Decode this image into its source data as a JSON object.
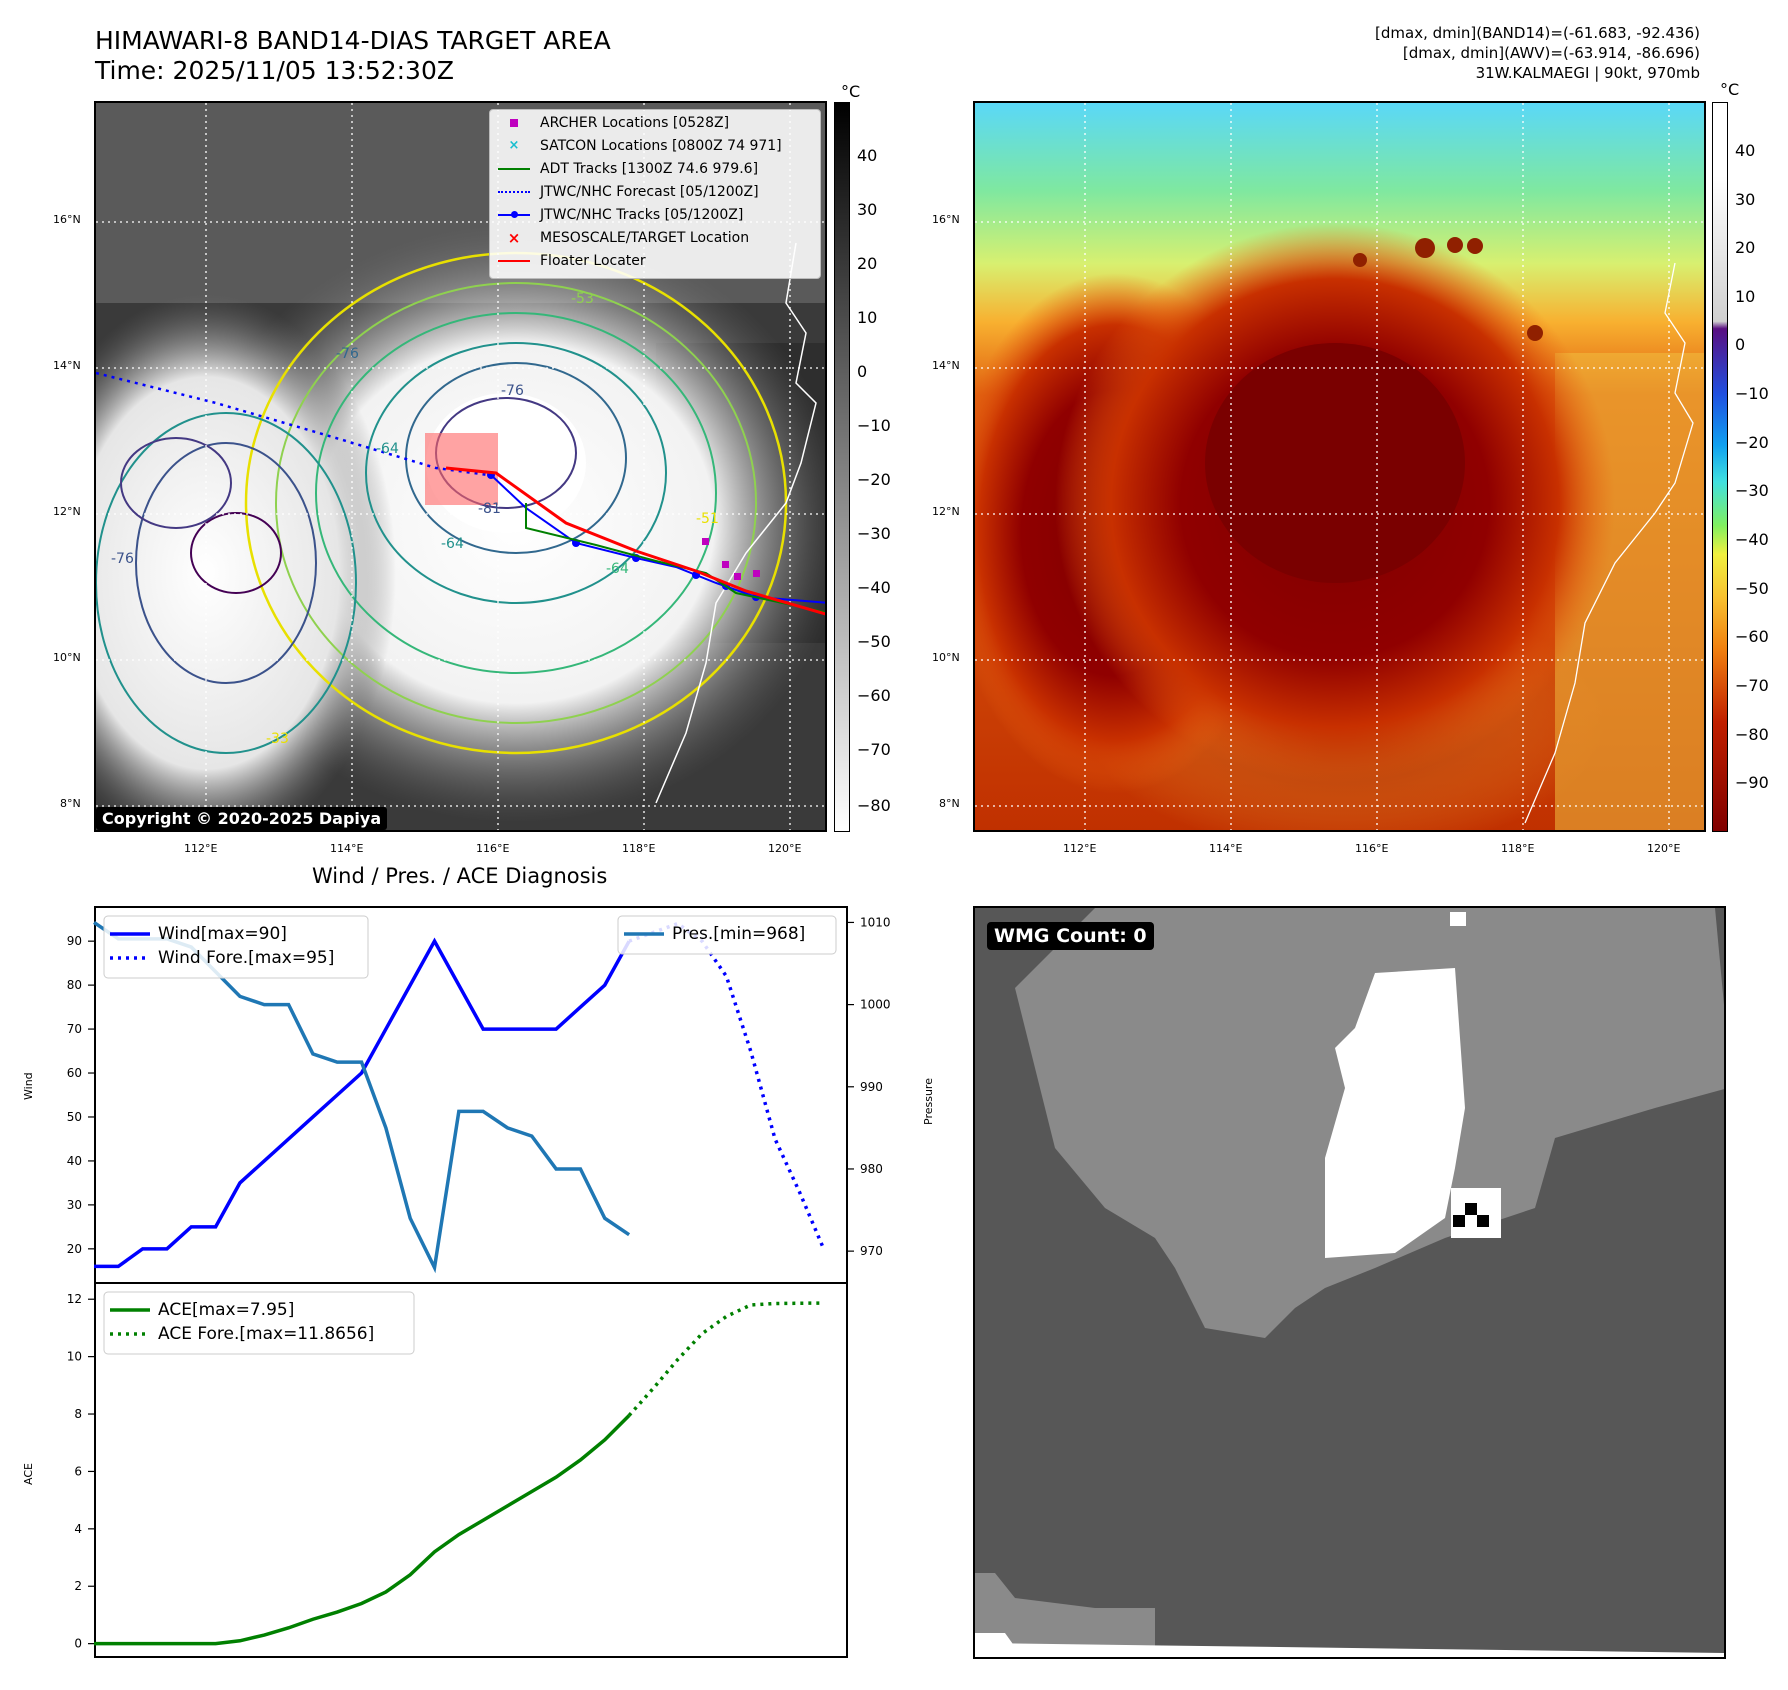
{
  "header": {
    "title_line1": "HIMAWARI-8 BAND14-DIAS TARGET AREA",
    "title_line2": "Time: 2025/11/05 13:52:30Z",
    "right_line1": "[dmax, dmin](BAND14)=(-61.683, -92.436)",
    "right_line2": "[dmax, dmin](AWV)=(-63.914, -86.696)",
    "right_line3": "31W.KALMAEGI | 90kt, 970mb"
  },
  "colors": {
    "wind": "#0000ff",
    "pressure": "#1f77b4",
    "ace": "#008000",
    "floater": "#ff0000",
    "archer": "#bf00bf",
    "satcon": "#17becf"
  },
  "map": {
    "lon_ticks": [
      "112°E",
      "114°E",
      "116°E",
      "118°E",
      "120°E"
    ],
    "lat_ticks": [
      "16°N",
      "14°N",
      "12°N",
      "10°N",
      "8°N"
    ],
    "unit": "°C",
    "left_cbar_ticks": [
      "40",
      "30",
      "20",
      "10",
      "0",
      "−10",
      "−20",
      "−30",
      "−40",
      "−50",
      "−60",
      "−70",
      "−80"
    ],
    "right_cbar_ticks": [
      "40",
      "30",
      "20",
      "10",
      "0",
      "−10",
      "−20",
      "−30",
      "−40",
      "−50",
      "−60",
      "−70",
      "−80",
      "−90"
    ],
    "contour_labels": [
      "-76",
      "-81",
      "-64",
      "-76",
      "-64",
      "-53",
      "-33",
      "-51",
      "-64",
      "-76"
    ],
    "copyright": "Copyright © 2020-2025 Dapiya",
    "legend": [
      {
        "label": "ARCHER Locations [0528Z]",
        "icon": "square-marker"
      },
      {
        "label": "SATCON Locations [0800Z 74 971]",
        "icon": "x-marker"
      },
      {
        "label": "ADT Tracks [1300Z 74.6 979.6]",
        "icon": "line-green"
      },
      {
        "label": "JTWC/NHC Forecast [05/1200Z]",
        "icon": "dotted-blue"
      },
      {
        "label": "JTWC/NHC Tracks [05/1200Z]",
        "icon": "line-dot-blue"
      },
      {
        "label": "MESOSCALE/TARGET Location",
        "icon": "x-red"
      },
      {
        "label": "Floater Locater",
        "icon": "line-red"
      }
    ]
  },
  "wmg": {
    "label": "WMG Count: 0"
  },
  "chart_data": [
    {
      "type": "line",
      "title": "Wind / Pres. / ACE Diagnosis",
      "ylabel": "Wind",
      "ylabel_right": "Pressure",
      "xlim": [
        0,
        31
      ],
      "ylim": [
        12,
        98
      ],
      "ylim_right": [
        966,
        1012
      ],
      "yticks": [
        20,
        30,
        40,
        50,
        60,
        70,
        80,
        90
      ],
      "yticks_right": [
        970,
        980,
        990,
        1000,
        1010
      ],
      "series": [
        {
          "name": "Wind[max=90]",
          "axis": "left",
          "style": "solid",
          "x": [
            0,
            1,
            2,
            3,
            4,
            5,
            6,
            7,
            8,
            9,
            10,
            11,
            12,
            13,
            14,
            15,
            16,
            17,
            18,
            19,
            20,
            21,
            22
          ],
          "values": [
            16,
            16,
            20,
            20,
            25,
            25,
            35,
            40,
            45,
            50,
            55,
            60,
            70,
            80,
            90,
            80,
            70,
            70,
            70,
            70,
            75,
            80,
            90
          ]
        },
        {
          "name": "Wind Fore.[max=95]",
          "axis": "left",
          "style": "dotted",
          "x": [
            22,
            23,
            24,
            25,
            26,
            27,
            28,
            29,
            30
          ],
          "values": [
            90,
            92,
            94,
            90,
            82,
            65,
            45,
            33,
            20
          ]
        },
        {
          "name": "Pres.[min=968]",
          "axis": "right",
          "style": "solid",
          "x": [
            0,
            1,
            2,
            3,
            4,
            5,
            6,
            7,
            8,
            9,
            10,
            11,
            12,
            13,
            14,
            15,
            16,
            17,
            18,
            19,
            20,
            21,
            22
          ],
          "values": [
            1010,
            1008,
            1008,
            1008,
            1007,
            1004,
            1001,
            1000,
            1000,
            994,
            993,
            993,
            985,
            974,
            968,
            987,
            987,
            985,
            984,
            980,
            980,
            974,
            972
          ]
        }
      ]
    },
    {
      "type": "line",
      "ylabel": "ACE",
      "xlim": [
        0,
        31
      ],
      "ylim": [
        -0.5,
        12.6
      ],
      "yticks": [
        0,
        2,
        4,
        6,
        8,
        10,
        12
      ],
      "series": [
        {
          "name": "ACE[max=7.95]",
          "style": "solid",
          "x": [
            0,
            1,
            2,
            3,
            4,
            5,
            6,
            7,
            8,
            9,
            10,
            11,
            12,
            13,
            14,
            15,
            16,
            17,
            18,
            19,
            20,
            21,
            22
          ],
          "values": [
            0,
            0,
            0,
            0,
            0,
            0,
            0.1,
            0.3,
            0.55,
            0.85,
            1.1,
            1.4,
            1.8,
            2.4,
            3.2,
            3.8,
            4.3,
            4.8,
            5.3,
            5.8,
            6.4,
            7.1,
            7.95
          ]
        },
        {
          "name": "ACE Fore.[max=11.8656]",
          "style": "dotted",
          "x": [
            22,
            23,
            24,
            25,
            26,
            27,
            28,
            29,
            30
          ],
          "values": [
            7.95,
            8.9,
            9.9,
            10.8,
            11.4,
            11.8,
            11.85,
            11.86,
            11.8656
          ]
        }
      ]
    }
  ]
}
